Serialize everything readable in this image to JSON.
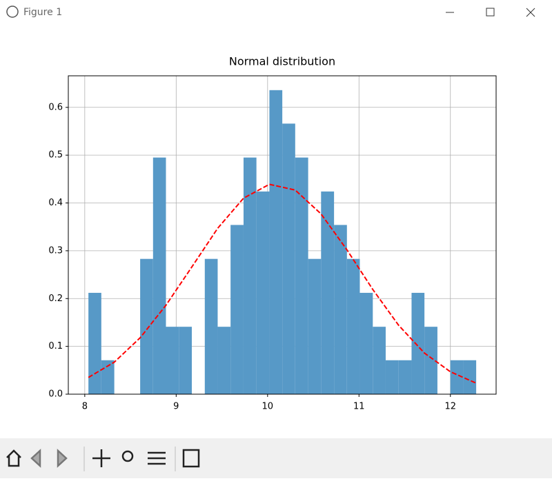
{
  "window": {
    "title": "Figure 1"
  },
  "chart_data": {
    "type": "histogram",
    "title": "Normal distribution",
    "bins": [
      8.04,
      8.181,
      8.323,
      8.464,
      8.606,
      8.747,
      8.888,
      9.03,
      9.171,
      9.313,
      9.454,
      9.595,
      9.737,
      9.878,
      10.02,
      10.161,
      10.302,
      10.444,
      10.585,
      10.727,
      10.868,
      11.009,
      11.151,
      11.292,
      11.434,
      11.575,
      11.716,
      11.858,
      11.999,
      12.141,
      12.282
    ],
    "values": [
      0.212,
      0.071,
      0,
      0,
      0.283,
      0.495,
      0.141,
      0.141,
      0,
      0.283,
      0.141,
      0.354,
      0.495,
      0.424,
      0.636,
      0.566,
      0.495,
      0.283,
      0.424,
      0.354,
      0.283,
      0.212,
      0.141,
      0.071,
      0.071,
      0.212,
      0.141,
      0,
      0.071,
      0.071
    ],
    "color": "#5799c7",
    "line": {
      "color": "#ff0000",
      "style": "dashed",
      "x": [
        8.04,
        8.323,
        8.606,
        8.888,
        9.171,
        9.454,
        9.737,
        10.02,
        10.302,
        10.585,
        10.868,
        11.151,
        11.434,
        11.716,
        11.999,
        12.282
      ],
      "values": [
        0.035,
        0.067,
        0.118,
        0.186,
        0.266,
        0.347,
        0.41,
        0.439,
        0.427,
        0.377,
        0.302,
        0.219,
        0.144,
        0.086,
        0.047,
        0.023
      ]
    },
    "xlim": [
      7.82,
      12.5
    ],
    "ylim": [
      0,
      0.666
    ],
    "xticks": [
      8,
      9,
      10,
      11,
      12
    ],
    "yticks": [
      {
        "value": 0,
        "label": "0.0"
      },
      0.1,
      0.2,
      0.3,
      0.4,
      0.5,
      0.6
    ],
    "grid": true
  }
}
